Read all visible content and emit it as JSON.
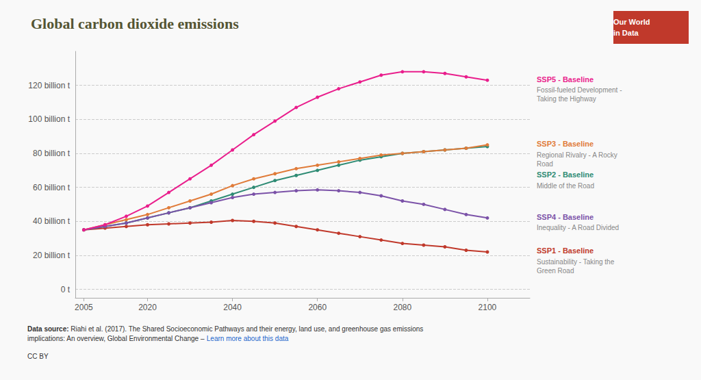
{
  "chart_data": {
    "type": "line",
    "title": "Global carbon dioxide emissions",
    "x": [
      2005,
      2010,
      2015,
      2020,
      2025,
      2030,
      2035,
      2040,
      2045,
      2050,
      2055,
      2060,
      2065,
      2070,
      2075,
      2080,
      2085,
      2090,
      2095,
      2100
    ],
    "series": [
      {
        "name": "SSP1 - Baseline",
        "color": "#c0392b",
        "values": [
          35,
          36,
          37,
          38,
          38.5,
          39,
          39.5,
          40.5,
          40,
          39,
          37,
          35,
          33,
          31,
          29,
          27,
          26,
          25,
          23,
          22
        ]
      },
      {
        "name": "SSP2 - Baseline",
        "color": "#2e8b74",
        "values": [
          35,
          37,
          39,
          42,
          45,
          48,
          52,
          56,
          60,
          64,
          67,
          70,
          73,
          76,
          78,
          80,
          81,
          82,
          83,
          84
        ]
      },
      {
        "name": "SSP3 - Baseline",
        "color": "#e07b39",
        "values": [
          35,
          38,
          41,
          44,
          48,
          52,
          56,
          61,
          65,
          68,
          71,
          73,
          75,
          77,
          79,
          80,
          81,
          82,
          83,
          85
        ]
      },
      {
        "name": "SSP4 - Baseline",
        "color": "#7b52a8",
        "values": [
          35,
          37,
          39,
          42,
          45,
          48,
          51,
          54,
          56,
          57,
          58,
          58.5,
          58,
          57,
          55,
          52,
          50,
          47,
          44,
          42
        ]
      },
      {
        "name": "SSP5 - Baseline",
        "color": "#e91e8c",
        "values": [
          35,
          38,
          43,
          49,
          57,
          65,
          73,
          82,
          91,
          99,
          107,
          113,
          118,
          122,
          126,
          128,
          128,
          127,
          125,
          123
        ]
      }
    ],
    "annotations": [
      {
        "series": "SSP1 - Baseline",
        "text": "Sustainability - Taking the\nGreen Road"
      },
      {
        "series": "SSP2 - Baseline",
        "text": "Middle of the Road"
      },
      {
        "series": "SSP3 - Baseline",
        "text": "Regional Rivalry - A Rocky\nRoad"
      },
      {
        "series": "SSP4 - Baseline",
        "text": "Inequality - A Road Divided"
      },
      {
        "series": "SSP5 - Baseline",
        "text": "Fossil-fueled Development -\nTaking the Highway"
      }
    ],
    "xlim": [
      2003,
      2110
    ],
    "xticks": [
      2005,
      2020,
      2040,
      2060,
      2080,
      2100
    ],
    "ylim": [
      -5,
      140
    ],
    "yticks": [
      {
        "value": 0,
        "label": "0 t"
      },
      {
        "value": 20,
        "label": "20 billion t"
      },
      {
        "value": 40,
        "label": "40 billion t"
      },
      {
        "value": 60,
        "label": "60 billion t"
      },
      {
        "value": 80,
        "label": "80 billion t"
      },
      {
        "value": 100,
        "label": "100 billion t"
      },
      {
        "value": 120,
        "label": "120 billion t"
      }
    ],
    "grid": "y",
    "marker": "circle",
    "logo": {
      "lines": [
        "Our World",
        "in Data"
      ],
      "color": "#c0392b"
    },
    "source_label": "Data source:",
    "source": " Riahi et al. (2017). The Shared Socioeconomic Pathways and their energy, land use, and greenhouse gas emissions\nimplications: An overview, Global Environmental Change – ",
    "link": "Learn more about this data",
    "license": "CC BY"
  }
}
